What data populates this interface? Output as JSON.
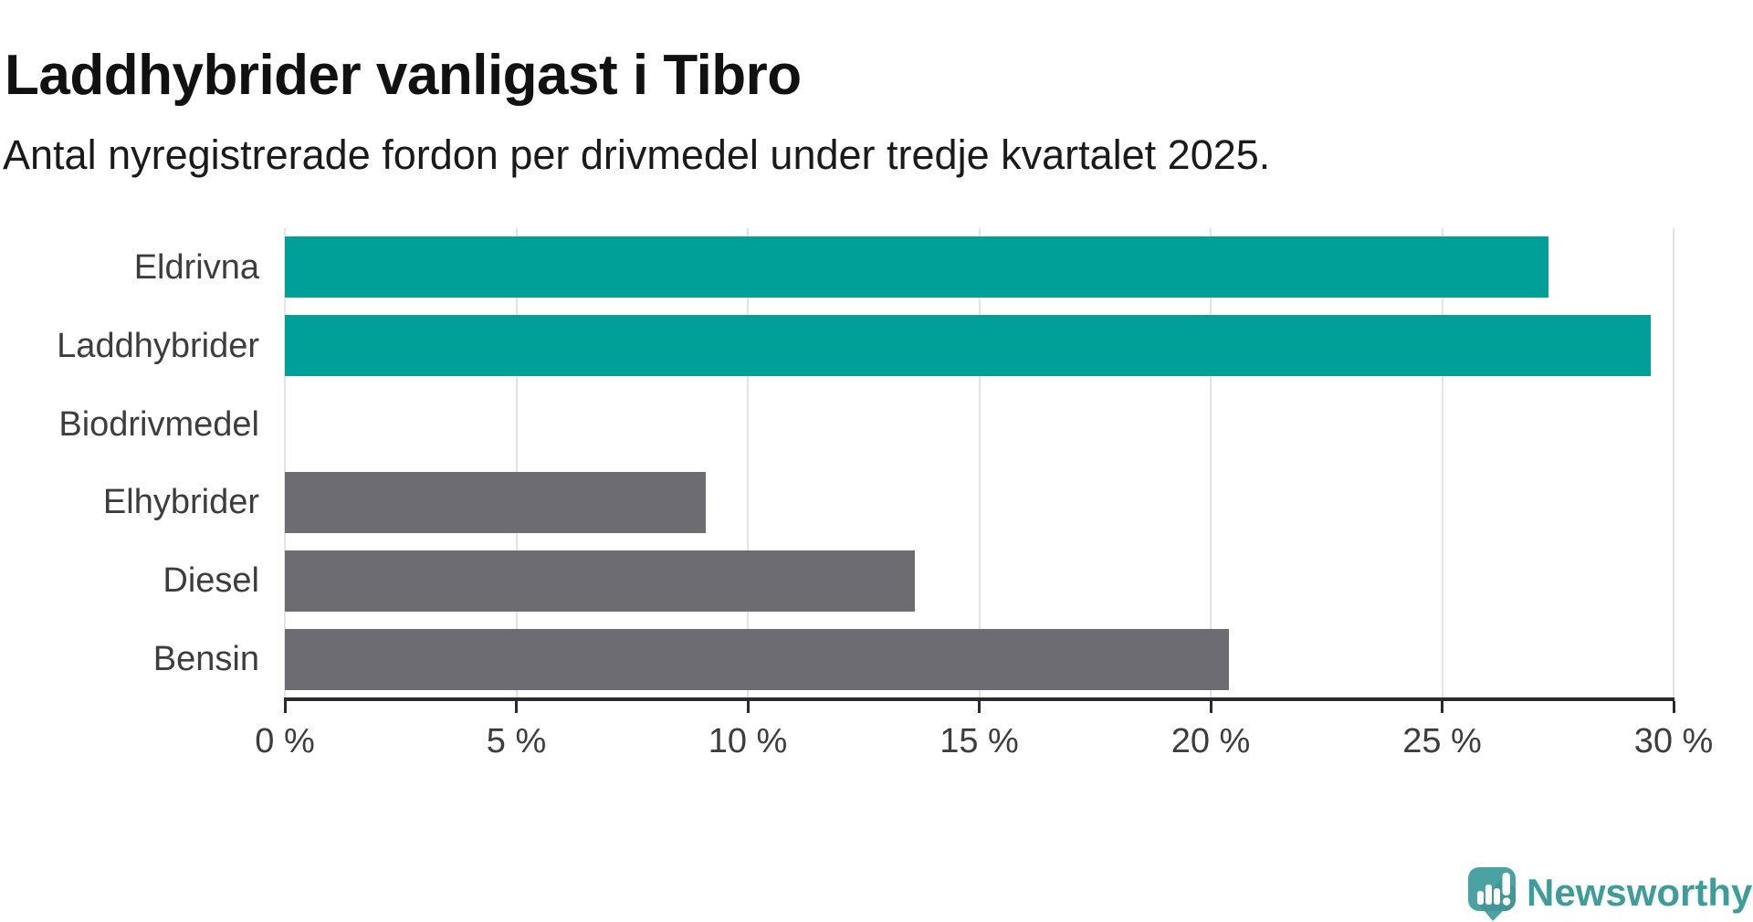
{
  "header": {
    "title": "Laddhybrider vanligast i Tibro",
    "subtitle": "Antal nyregistrerade fordon per drivmedel under tredje kvartalet 2025."
  },
  "chart_data": {
    "type": "bar",
    "orientation": "horizontal",
    "title": "Laddhybrider vanligast i Tibro",
    "subtitle": "Antal nyregistrerade fordon per drivmedel under tredje kvartalet 2025.",
    "categories": [
      "Eldrivna",
      "Laddhybrider",
      "Biodrivmedel",
      "Elhybrider",
      "Diesel",
      "Bensin"
    ],
    "values": [
      27.3,
      29.5,
      0,
      9.1,
      13.6,
      20.4
    ],
    "unit": "%",
    "bar_colors": [
      "#00a099",
      "#00a099",
      "#6c6c72",
      "#6c6c72",
      "#6c6c72",
      "#6c6c72"
    ],
    "highlight_color": "#00a099",
    "default_color": "#6c6c72",
    "xlim": [
      0,
      30
    ],
    "x_ticks": [
      0,
      5,
      10,
      15,
      20,
      25,
      30
    ],
    "x_tick_labels": [
      "0 %",
      "5 %",
      "10 %",
      "15 %",
      "20 %",
      "25 %",
      "30 %"
    ],
    "grid": "vertical",
    "grid_color": "#e3e3e3",
    "axis_color": "#2b2b2b",
    "label_color": "#3d3d3d",
    "legend": "none"
  },
  "branding": {
    "logo_text": "Newsworthy",
    "logo_color": "#3f9c9b",
    "logo_icon": "newsworthy-speech-bubble-chart-icon",
    "logo_icon_color": "#4ba2a3"
  }
}
